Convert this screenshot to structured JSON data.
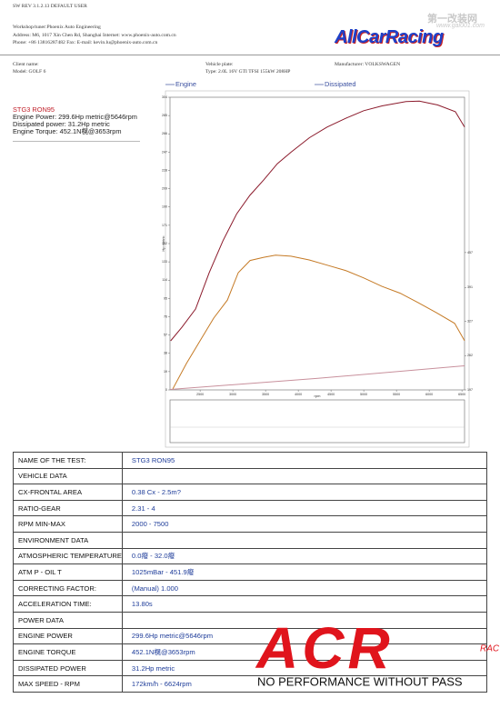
{
  "header": {
    "software": "SW REV 3.1.2.13   DEFAULT USER",
    "workshop": "Workshop/tuner:Phoenix Auto Engineering",
    "address": "Address: M6, 1017 Xin Chen Rd, Shanghai Internet: www.phoenix-auto.com.cn",
    "phone": "Phone: +86 13816287482 Fax:  E-mail: kevin.lu@phoenix-auto.com.cn",
    "logo": "AllCarRacing",
    "watermark": "第一改装网",
    "watermark_url": "www.gai001.com",
    "client": "Client name:",
    "model": "Model: GOLF 6",
    "plate": "Vehicle plate:",
    "type": "Type: 2.0L 16V GTI TFSI 155kW 208HP",
    "manufacturer": "Manufacturer: VOLKSWAGEN"
  },
  "summary": [
    "STG3 RON95",
    "Engine Power: 299.6Hp metric@5646rpm",
    "Dissipated power: 31.2Hp metric",
    "Engine Torque: 452.1N榥@3653rpm"
  ],
  "chart_data": {
    "type": "line",
    "y_label": "Hp metric",
    "x_label": "rpm",
    "xlim": [
      2040,
      6540
    ],
    "xticks": [
      2500,
      3000,
      3500,
      4000,
      4500,
      5000,
      5500,
      6000,
      6500
    ],
    "ylim": [
      0,
      304
    ],
    "yticks": [
      0,
      19,
      38,
      57,
      76,
      95,
      114,
      133,
      152,
      171,
      190,
      209,
      228,
      247,
      266,
      285,
      304
    ],
    "y2lim": [
      197,
      751
    ],
    "y2ticks": [
      197,
      262,
      327,
      391,
      457
    ],
    "series": [
      {
        "name": "Engine",
        "color": "#8b1a2b",
        "x": [
          2050,
          2220,
          2430,
          2640,
          2850,
          3060,
          3260,
          3470,
          3680,
          3890,
          4170,
          4440,
          4720,
          5000,
          5280,
          5646,
          5850,
          6130,
          6400,
          6540
        ],
        "values": [
          51,
          65,
          84,
          122,
          155,
          183,
          202,
          218,
          235,
          247,
          262,
          273,
          282,
          290,
          295,
          299.6,
          300,
          296,
          289,
          273
        ]
      },
      {
        "name": "Dissipated",
        "color": "#c8909c",
        "x": [
          2042,
          4300,
          6540
        ],
        "values": [
          0.5,
          12,
          25
        ]
      },
      {
        "axis": "y2",
        "color": "#c57a25",
        "x": [
          2083,
          2292,
          2500,
          2708,
          2917,
          3083,
          3264,
          3472,
          3653,
          3889,
          4167,
          4444,
          4722,
          5000,
          5278,
          5556,
          5833,
          6111,
          6389,
          6540
        ],
        "values": [
          199,
          247,
          290,
          333,
          367,
          419,
          442,
          448,
          452.1,
          450,
          443,
          433,
          423,
          409,
          393,
          380,
          362,
          343,
          323,
          290
        ]
      }
    ]
  },
  "table": {
    "rows": [
      [
        "NAME OF THE TEST:",
        "STG3 RON95"
      ],
      [
        "VEHICLE DATA"
      ],
      [
        "CX-FRONTAL AREA",
        "0.38 Cx - 2.5m?"
      ],
      [
        "RATIO-GEAR",
        "2.31 - 4"
      ],
      [
        "RPM MIN-MAX",
        "2000 - 7500"
      ],
      [
        "ENVIRONMENT DATA"
      ],
      [
        "ATMOSPHERIC TEMPERATURE",
        "0.0癈 - 32.0癈"
      ],
      [
        "ATM P - OIL T",
        "1025mBar - 451.9癈"
      ],
      [
        "CORRECTING FACTOR:",
        "(Manual) 1.000"
      ],
      [
        "ACCELERATION TIME:",
        " 13.80s"
      ],
      [
        "POWER DATA"
      ],
      [
        "ENGINE POWER",
        "299.6Hp metric@5646rpm"
      ],
      [
        "ENGINE TORQUE",
        "452.1N榥@3653rpm"
      ],
      [
        "DISSIPATED POWER",
        "31.2Hp metric"
      ],
      [
        "MAX SPEED - RPM",
        "172km/h - 6624rpm"
      ]
    ]
  },
  "acr": {
    "logo": "ACR",
    "small": "RAC",
    "slogan": "NO PERFORMANCE WITHOUT PASS"
  }
}
